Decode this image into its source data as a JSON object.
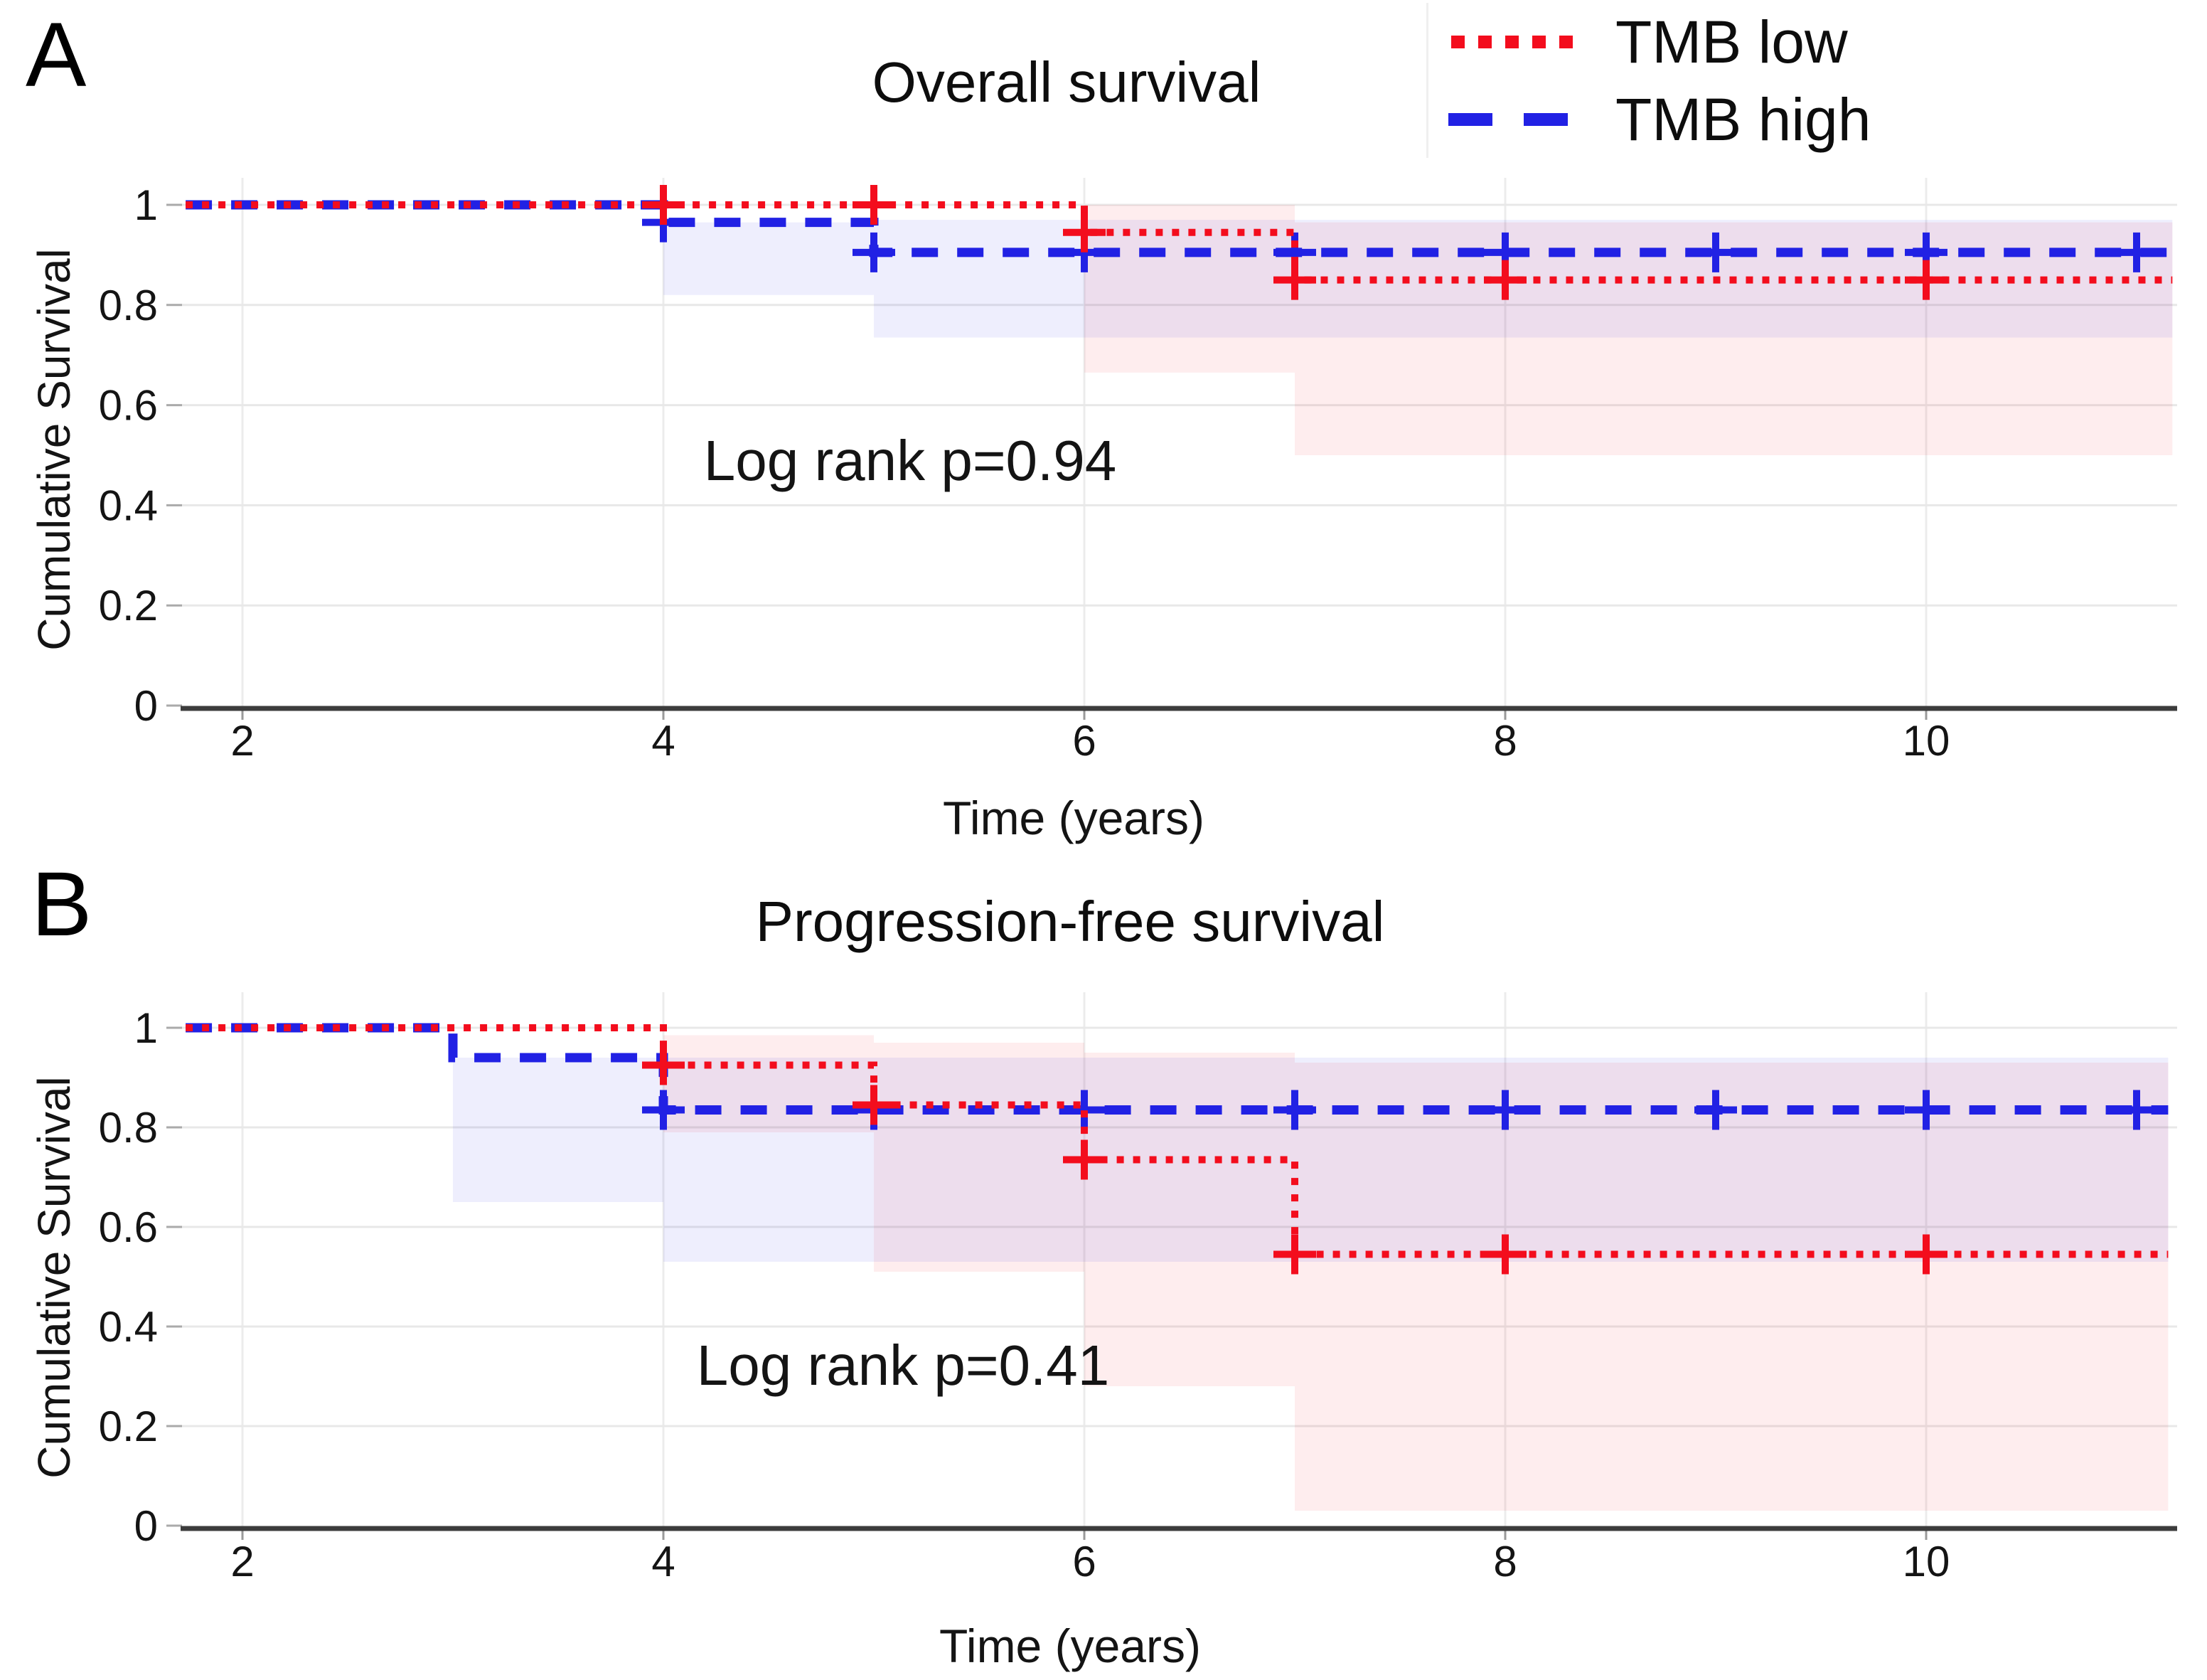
{
  "figure": {
    "panel_a_letter": "A",
    "panel_b_letter": "B",
    "legend": [
      {
        "label": "TMB low",
        "style": "dotted",
        "color": "#f30d1d"
      },
      {
        "label": "TMB high",
        "style": "dashed",
        "color": "#2121e4"
      }
    ],
    "accent_red": "#f30d1d",
    "accent_blue": "#2121e4"
  },
  "chart_data": [
    {
      "type": "line",
      "subtype": "kaplan-meier-step",
      "panel_label": "A",
      "title": "Overall survival",
      "xlabel": "Time (years)",
      "ylabel": "Cumulative Survival",
      "annotation": "Log rank p=0.94",
      "annotation_xy": [
        5.15,
        0.49
      ],
      "xlim": [
        1.73,
        11.17
      ],
      "ylim": [
        0,
        1.05
      ],
      "grid": true,
      "legend_position": "top-right",
      "xticks": [
        2,
        4,
        6,
        8,
        10
      ],
      "xtick_labels": [
        "2",
        "4",
        "6",
        "8",
        "10"
      ],
      "yticks": [
        0,
        0.2,
        0.4,
        0.6,
        0.8,
        1
      ],
      "ytick_labels": [
        "0",
        "0.2",
        "0.4",
        "0.6",
        "0.8",
        "1"
      ],
      "series": [
        {
          "name": "TMB low",
          "color": "#f30d1d",
          "style": "dotted",
          "steps": [
            [
              1.73,
              1.0
            ],
            [
              6,
              1.0
            ],
            [
              6,
              0.945
            ],
            [
              7,
              0.945
            ],
            [
              7,
              0.85
            ],
            [
              11.17,
              0.85
            ]
          ],
          "censor_marks": [
            [
              4,
              1.0
            ],
            [
              5,
              1.0
            ],
            [
              6,
              0.945
            ],
            [
              7,
              0.85
            ],
            [
              8,
              0.85
            ],
            [
              10,
              0.85
            ]
          ],
          "ci_band": [
            [
              6,
              7,
              0.665,
              1.0
            ],
            [
              7,
              11.17,
              0.5,
              0.965
            ]
          ]
        },
        {
          "name": "TMB high",
          "color": "#2121e4",
          "style": "dashed",
          "steps": [
            [
              1.73,
              1.0
            ],
            [
              4,
              1.0
            ],
            [
              4,
              0.965
            ],
            [
              5,
              0.965
            ],
            [
              5,
              0.905
            ],
            [
              11.17,
              0.905
            ]
          ],
          "censor_marks": [
            [
              4,
              0.965
            ],
            [
              5,
              0.905
            ],
            [
              6,
              0.905
            ],
            [
              7,
              0.905
            ],
            [
              8,
              0.905
            ],
            [
              9,
              0.905
            ],
            [
              10,
              0.905
            ],
            [
              11,
              0.905
            ]
          ],
          "ci_band": [
            [
              4,
              5,
              0.82,
              0.965
            ],
            [
              5,
              11.17,
              0.735,
              0.97
            ]
          ]
        }
      ]
    },
    {
      "type": "line",
      "subtype": "kaplan-meier-step",
      "panel_label": "B",
      "title": "Progression-free survival",
      "xlabel": "Time (years)",
      "ylabel": "Cumulative Survival",
      "annotation": "Log rank p=0.41",
      "annotation_xy": [
        5.15,
        0.33
      ],
      "xlim": [
        1.73,
        11.15
      ],
      "ylim": [
        0,
        1.05
      ],
      "grid": true,
      "legend_position": "none",
      "xticks": [
        2,
        4,
        6,
        8,
        10
      ],
      "xtick_labels": [
        "2",
        "4",
        "6",
        "8",
        "10"
      ],
      "yticks": [
        0,
        0.2,
        0.4,
        0.6,
        0.8,
        1
      ],
      "ytick_labels": [
        "0",
        "0.2",
        "0.4",
        "0.6",
        "0.8",
        "1"
      ],
      "series": [
        {
          "name": "TMB low",
          "color": "#f30d1d",
          "style": "dotted",
          "steps": [
            [
              1.73,
              1.0
            ],
            [
              4,
              1.0
            ],
            [
              4,
              0.925
            ],
            [
              5,
              0.925
            ],
            [
              5,
              0.845
            ],
            [
              6,
              0.845
            ],
            [
              6,
              0.735
            ],
            [
              7,
              0.735
            ],
            [
              7,
              0.545
            ],
            [
              11.15,
              0.545
            ]
          ],
          "censor_marks": [
            [
              4,
              0.925
            ],
            [
              5,
              0.845
            ],
            [
              6,
              0.735
            ],
            [
              7,
              0.545
            ],
            [
              8,
              0.545
            ],
            [
              10,
              0.545
            ]
          ],
          "ci_band": [
            [
              4,
              5,
              0.79,
              0.985
            ],
            [
              5,
              6,
              0.51,
              0.97
            ],
            [
              6,
              7,
              0.28,
              0.95
            ],
            [
              7,
              11.15,
              0.03,
              0.93
            ]
          ]
        },
        {
          "name": "TMB high",
          "color": "#2121e4",
          "style": "dashed",
          "steps": [
            [
              1.73,
              1.0
            ],
            [
              3,
              1.0
            ],
            [
              3,
              0.94
            ],
            [
              4,
              0.94
            ],
            [
              4,
              0.835
            ],
            [
              11.15,
              0.835
            ]
          ],
          "censor_marks": [
            [
              4,
              0.835
            ],
            [
              5,
              0.835
            ],
            [
              6,
              0.835
            ],
            [
              7,
              0.835
            ],
            [
              8,
              0.835
            ],
            [
              9,
              0.835
            ],
            [
              10,
              0.835
            ],
            [
              11,
              0.835
            ]
          ],
          "ci_band": [
            [
              3,
              4,
              0.65,
              0.94
            ],
            [
              4,
              11.15,
              0.53,
              0.94
            ]
          ]
        }
      ]
    }
  ]
}
